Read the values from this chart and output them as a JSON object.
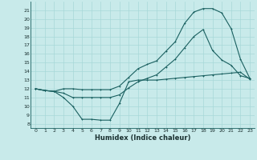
{
  "xlabel": "Humidex (Indice chaleur)",
  "bg_color": "#c8eaea",
  "grid_color": "#a8d8d8",
  "line_color": "#1a6060",
  "xlim": [
    -0.5,
    23.5
  ],
  "ylim": [
    7.5,
    22.0
  ],
  "xticks": [
    0,
    1,
    2,
    3,
    4,
    5,
    6,
    7,
    8,
    9,
    10,
    11,
    12,
    13,
    14,
    15,
    16,
    17,
    18,
    19,
    20,
    21,
    22,
    23
  ],
  "yticks": [
    8,
    9,
    10,
    11,
    12,
    13,
    14,
    15,
    16,
    17,
    18,
    19,
    20,
    21
  ],
  "line1_x": [
    0,
    1,
    2,
    3,
    4,
    5,
    6,
    7,
    8,
    9,
    10,
    11,
    12,
    13,
    14,
    15,
    16,
    17,
    18,
    19,
    20,
    21,
    22,
    23
  ],
  "line1_y": [
    12,
    11.8,
    11.7,
    11.0,
    10.0,
    8.5,
    8.5,
    8.4,
    8.4,
    10.3,
    12.8,
    13.0,
    13.0,
    13.0,
    13.1,
    13.2,
    13.3,
    13.4,
    13.5,
    13.6,
    13.7,
    13.8,
    13.9,
    13.1
  ],
  "line2_x": [
    0,
    1,
    2,
    3,
    4,
    5,
    6,
    7,
    8,
    9,
    10,
    11,
    12,
    13,
    14,
    15,
    16,
    17,
    18,
    19,
    20,
    21,
    22,
    23
  ],
  "line2_y": [
    12,
    11.8,
    11.7,
    12.0,
    12.0,
    11.9,
    11.9,
    11.9,
    11.9,
    12.3,
    13.3,
    14.3,
    14.8,
    15.2,
    16.3,
    17.4,
    19.5,
    20.8,
    21.2,
    21.2,
    20.7,
    18.9,
    15.4,
    13.2
  ],
  "line3_x": [
    0,
    1,
    2,
    3,
    4,
    5,
    6,
    7,
    8,
    9,
    10,
    11,
    12,
    13,
    14,
    15,
    16,
    17,
    18,
    19,
    20,
    21,
    22,
    23
  ],
  "line3_y": [
    12,
    11.8,
    11.7,
    11.5,
    11.0,
    11.0,
    11.0,
    11.0,
    11.0,
    11.3,
    12.1,
    12.8,
    13.2,
    13.6,
    14.5,
    15.4,
    16.7,
    18.0,
    18.8,
    16.4,
    15.3,
    14.7,
    13.5,
    13.2
  ]
}
